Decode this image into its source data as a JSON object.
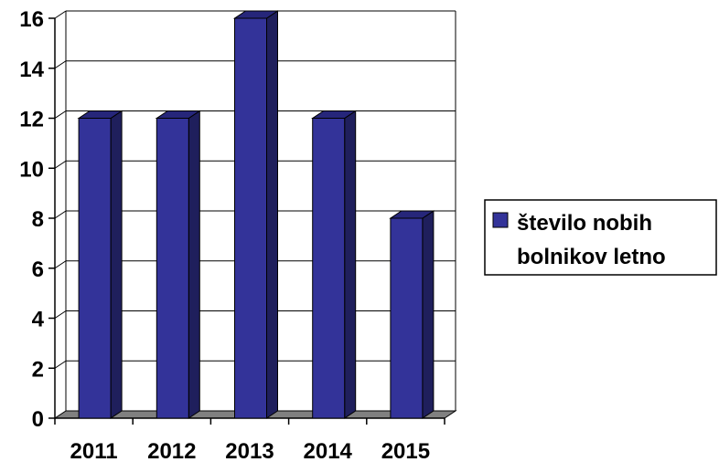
{
  "chart_data": {
    "type": "bar",
    "categories": [
      "2011",
      "2012",
      "2013",
      "2014",
      "2015"
    ],
    "series": [
      {
        "name": "število nobih bolnikov letno",
        "values": [
          12,
          12,
          16,
          12,
          8
        ]
      }
    ],
    "title": "",
    "xlabel": "",
    "ylabel": "",
    "ylim": [
      0,
      16
    ],
    "yticks": [
      0,
      2,
      4,
      6,
      8,
      10,
      12,
      14,
      16
    ],
    "grid": true,
    "legend_position": "right",
    "colors": {
      "bar_front": "#333399",
      "bar_side": "#1f1f5c",
      "bar_top": "#26267a",
      "floor": "#808080",
      "gridline": "#000000"
    }
  },
  "legend": {
    "line1": "število nobih",
    "line2": "bolnikov letno"
  }
}
